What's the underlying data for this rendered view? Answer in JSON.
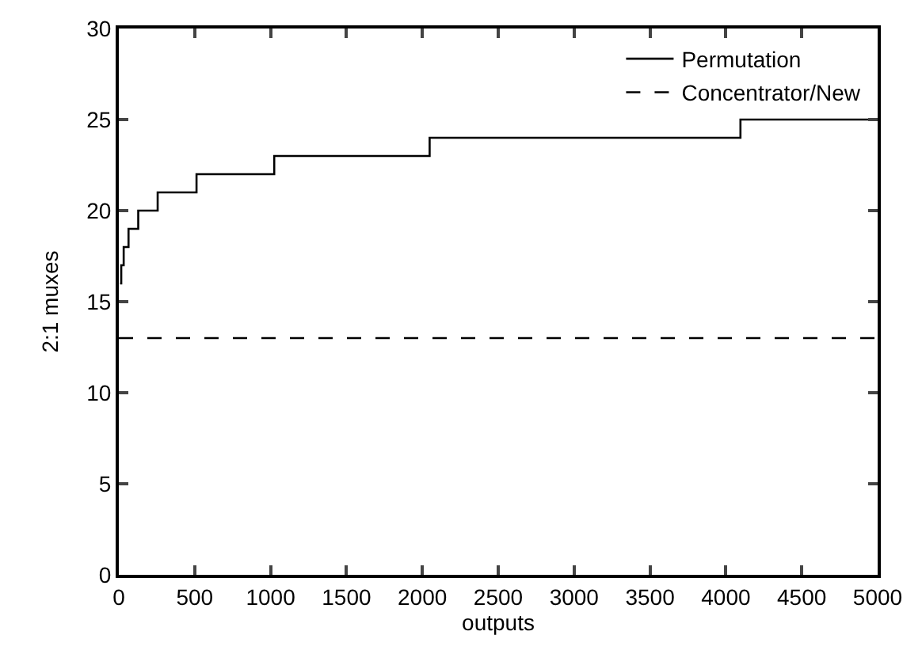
{
  "chart_data": {
    "type": "step",
    "xlabel": "outputs",
    "ylabel": "2:1 muxes",
    "series": [
      {
        "name": "Permutation",
        "color": "#000000",
        "line_style": "solid",
        "x": [
          8,
          16,
          32,
          64,
          128,
          256,
          512,
          1024,
          2048,
          4096,
          5000
        ],
        "values": [
          16,
          17,
          18,
          19,
          20,
          21,
          22,
          23,
          24,
          25,
          25
        ]
      },
      {
        "name": "Concentrator/New",
        "type": "line",
        "color": "#000000",
        "line_style": "dashed",
        "x": [
          0,
          5000
        ],
        "values": [
          13,
          13
        ]
      }
    ],
    "xlim": [
      0,
      5000
    ],
    "xticks": [
      0,
      500,
      1000,
      1500,
      2000,
      2500,
      3000,
      3500,
      4000,
      4500,
      5000
    ],
    "ylim": [
      0,
      30
    ],
    "yticks": [
      0,
      5,
      10,
      15,
      20,
      25,
      30
    ],
    "grid": false,
    "legend": "top right",
    "marker": "none"
  }
}
